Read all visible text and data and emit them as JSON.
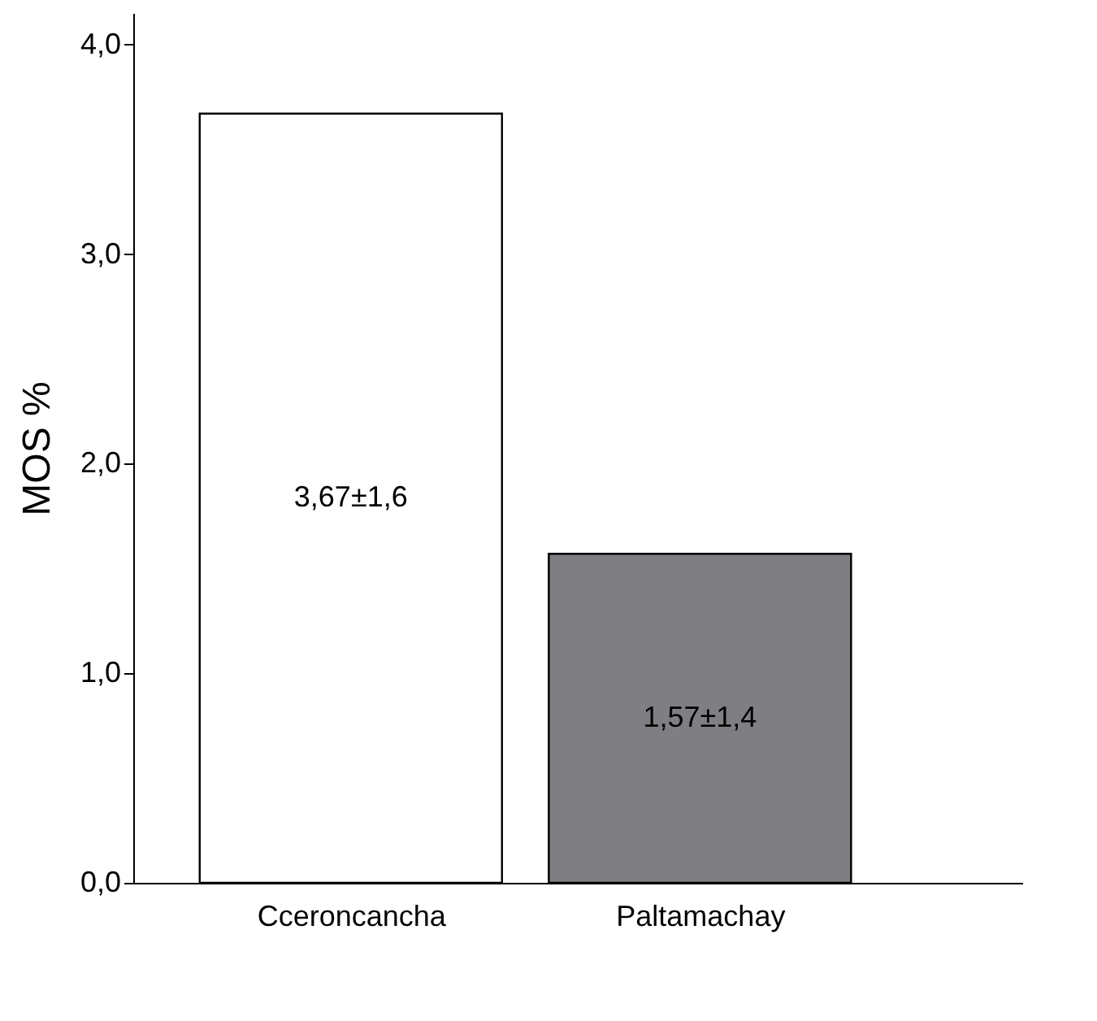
{
  "chart_data": {
    "type": "bar",
    "ylabel": "MOS %",
    "categories": [
      "Cceroncancha",
      "Paltamachay"
    ],
    "values": [
      3.67,
      1.57
    ],
    "colors": [
      "#ffffff",
      "#7f7f83"
    ],
    "value_labels": [
      "3,67±1,6",
      "1,57±1,4"
    ],
    "ylim": [
      0,
      4.15
    ],
    "yticks": [
      {
        "value": 0,
        "label": "0,0"
      },
      {
        "value": 1,
        "label": "1,0"
      },
      {
        "value": 2,
        "label": "2,0"
      },
      {
        "value": 3,
        "label": "3,0"
      },
      {
        "value": 4,
        "label": "4,0"
      }
    ],
    "grid": false
  }
}
